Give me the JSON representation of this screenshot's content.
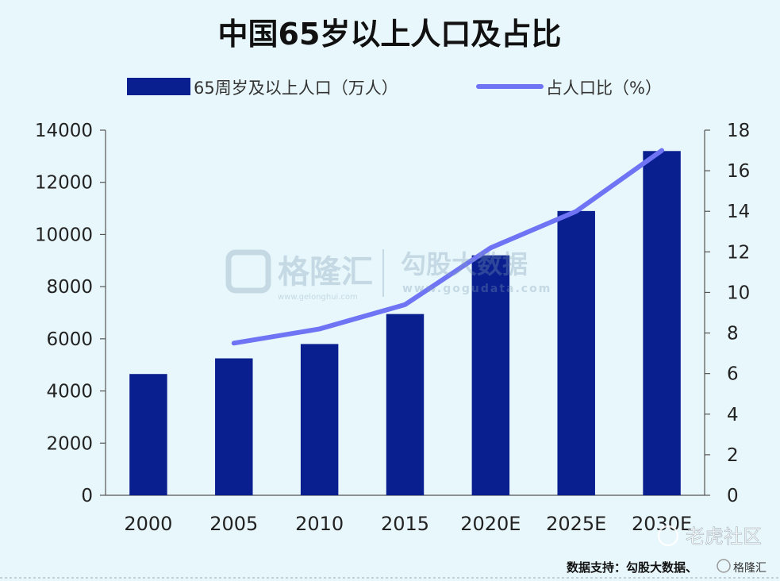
{
  "chart_data": {
    "type": "bar",
    "title": "中国65岁以上人口及占比",
    "categories": [
      "2000",
      "2005",
      "2010",
      "2015",
      "2020E",
      "2025E",
      "2030E"
    ],
    "series": [
      {
        "name": "65周岁及以上人口（万人）",
        "type": "bar",
        "axis": "left",
        "color": "#0a1f8f",
        "values": [
          4650,
          5250,
          5800,
          6950,
          9200,
          10900,
          13200
        ]
      },
      {
        "name": "占人口比（%）",
        "type": "line",
        "axis": "right",
        "color": "#6f74f5",
        "values": [
          null,
          7.5,
          8.2,
          9.4,
          12.2,
          14.0,
          17.0
        ]
      }
    ],
    "y_left": {
      "range": [
        0,
        14000
      ],
      "ticks": [
        "0",
        "2000",
        "4000",
        "6000",
        "8000",
        "10000",
        "12000",
        "14000"
      ]
    },
    "y_right": {
      "range": [
        0,
        18
      ],
      "ticks": [
        "0",
        "2",
        "4",
        "6",
        "8",
        "10",
        "12",
        "14",
        "16",
        "18"
      ]
    },
    "grid": false,
    "legend": "top"
  },
  "watermarks": {
    "brand1": "格隆汇",
    "brand1_url": "www.gelonghui.com",
    "brand2": "勾股大数据",
    "brand2_url": "www.gogudata.com",
    "tiger": "老虎社区",
    "corner": "格隆汇"
  },
  "source_note": "数据支持：勾股大数据、"
}
